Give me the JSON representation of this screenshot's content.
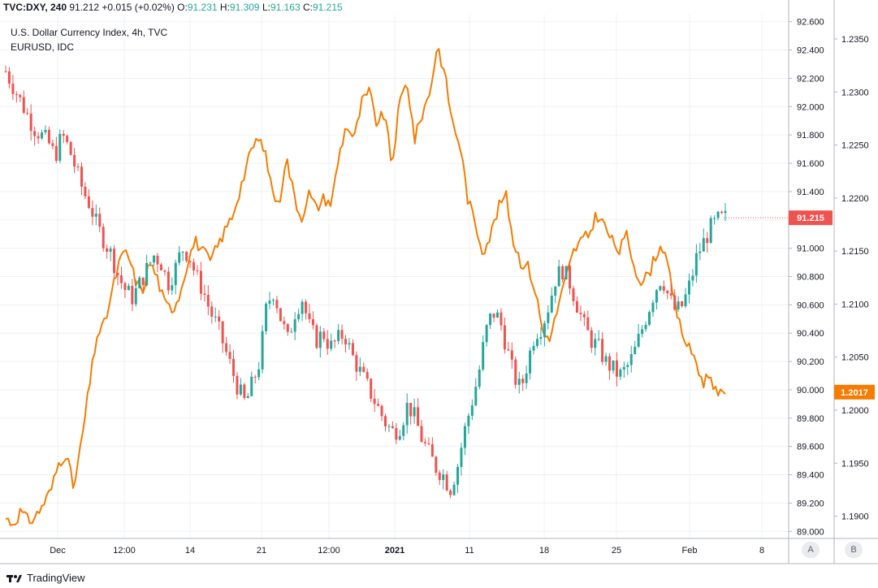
{
  "header": {
    "symbol": "TVC:DXY, 240",
    "last": "91.212",
    "change": "+0.015 (+0.02%)",
    "o_label": "O:",
    "o": "91.231",
    "h_label": "H:",
    "h": "91.309",
    "l_label": "L:",
    "l": "91.163",
    "c_label": "C:",
    "c": "91.215"
  },
  "legend": {
    "main": "U.S. Dollar Currency Index, 4h, TVC",
    "compare": "EURUSD, IDC"
  },
  "branding": {
    "name": "TradingView"
  },
  "scale_buttons": {
    "a": "A",
    "b": "B"
  },
  "colors": {
    "up": "#26a69a",
    "down": "#ef5350",
    "compare": "#f57c00",
    "price_badge": "#ef5350",
    "compare_badge": "#f57c00"
  },
  "chart_data": {
    "type": "candlestick",
    "x_ticks": [
      "Dec",
      "12:00",
      "14",
      "21",
      "12:00",
      "2021",
      "11",
      "18",
      "25",
      "Feb",
      "8"
    ],
    "y_left_axis": {
      "ticks": [
        "92.600",
        "92.400",
        "92.200",
        "92.000",
        "91.800",
        "91.600",
        "91.400",
        "91.200",
        "91.000",
        "90.800",
        "90.600",
        "90.400",
        "90.200",
        "90.000",
        "89.800",
        "89.600",
        "89.400",
        "89.200",
        "89.000"
      ],
      "range": [
        88.95,
        92.65
      ]
    },
    "y_right_axis": {
      "ticks": [
        "1.2350",
        "1.2300",
        "1.2250",
        "1.2200",
        "1.2150",
        "1.2100",
        "1.2050",
        "1.2000",
        "1.1950",
        "1.1900"
      ],
      "range": [
        1.1879,
        1.2373
      ]
    },
    "current_badges": {
      "dxy": "91.215",
      "eurusd": "1.2017"
    },
    "series": [
      {
        "name": "U.S. Dollar Currency Index",
        "kind": "candles",
        "close_path": [
          92.25,
          92.15,
          92.05,
          91.95,
          91.85,
          91.8,
          91.75,
          91.65,
          91.8,
          91.7,
          91.55,
          91.4,
          91.3,
          91.15,
          91.05,
          90.95,
          90.8,
          90.7,
          90.65,
          90.75,
          90.85,
          90.95,
          90.9,
          90.75,
          90.85,
          91.0,
          90.95,
          90.8,
          90.7,
          90.55,
          90.45,
          90.3,
          90.15,
          90.0,
          89.9,
          90.05,
          90.2,
          90.6,
          90.7,
          90.5,
          90.35,
          90.55,
          90.65,
          90.45,
          90.35,
          90.4,
          90.3,
          90.35,
          90.4,
          90.25,
          90.15,
          90.05,
          89.95,
          89.85,
          89.75,
          89.7,
          89.75,
          89.9,
          89.8,
          89.65,
          89.55,
          89.45,
          89.4,
          89.3,
          89.45,
          89.7,
          89.9,
          90.1,
          90.4,
          90.55,
          90.5,
          90.3,
          90.1,
          90.0,
          90.2,
          90.4,
          90.45,
          90.6,
          90.8,
          90.85,
          90.75,
          90.6,
          90.45,
          90.35,
          90.3,
          90.2,
          90.15,
          90.1,
          90.15,
          90.25,
          90.4,
          90.55,
          90.7,
          90.8,
          90.65,
          90.55,
          90.6,
          90.75,
          90.95,
          91.05,
          91.15,
          91.2,
          91.215
        ]
      },
      {
        "name": "EURUSD",
        "kind": "line",
        "close_path": [
          1.1898,
          1.1893,
          1.1905,
          1.1895,
          1.19,
          1.1912,
          1.1925,
          1.195,
          1.196,
          1.1925,
          1.197,
          1.202,
          1.207,
          1.208,
          1.211,
          1.214,
          1.215,
          1.2125,
          1.211,
          1.214,
          1.2125,
          1.21,
          1.2095,
          1.211,
          1.214,
          1.216,
          1.215,
          1.214,
          1.2155,
          1.217,
          1.2185,
          1.221,
          1.2235,
          1.2255,
          1.225,
          1.2215,
          1.219,
          1.224,
          1.2205,
          1.218,
          1.2205,
          1.219,
          1.22,
          1.2195,
          1.224,
          1.227,
          1.2255,
          1.229,
          1.23,
          1.227,
          1.228,
          1.223,
          1.229,
          1.231,
          1.2255,
          1.228,
          1.23,
          1.2345,
          1.2315,
          1.227,
          1.225,
          1.22,
          1.2175,
          1.215,
          1.2165,
          1.219,
          1.2205,
          1.216,
          1.214,
          1.2135,
          1.211,
          1.207,
          1.207,
          1.21,
          1.2125,
          1.215,
          1.216,
          1.2165,
          1.2185,
          1.2175,
          1.216,
          1.215,
          1.2165,
          1.2135,
          1.212,
          1.213,
          1.215,
          1.2155,
          1.211,
          1.208,
          1.206,
          1.205,
          1.2025,
          1.2035,
          1.2012,
          1.2017
        ]
      }
    ],
    "grid": true
  }
}
